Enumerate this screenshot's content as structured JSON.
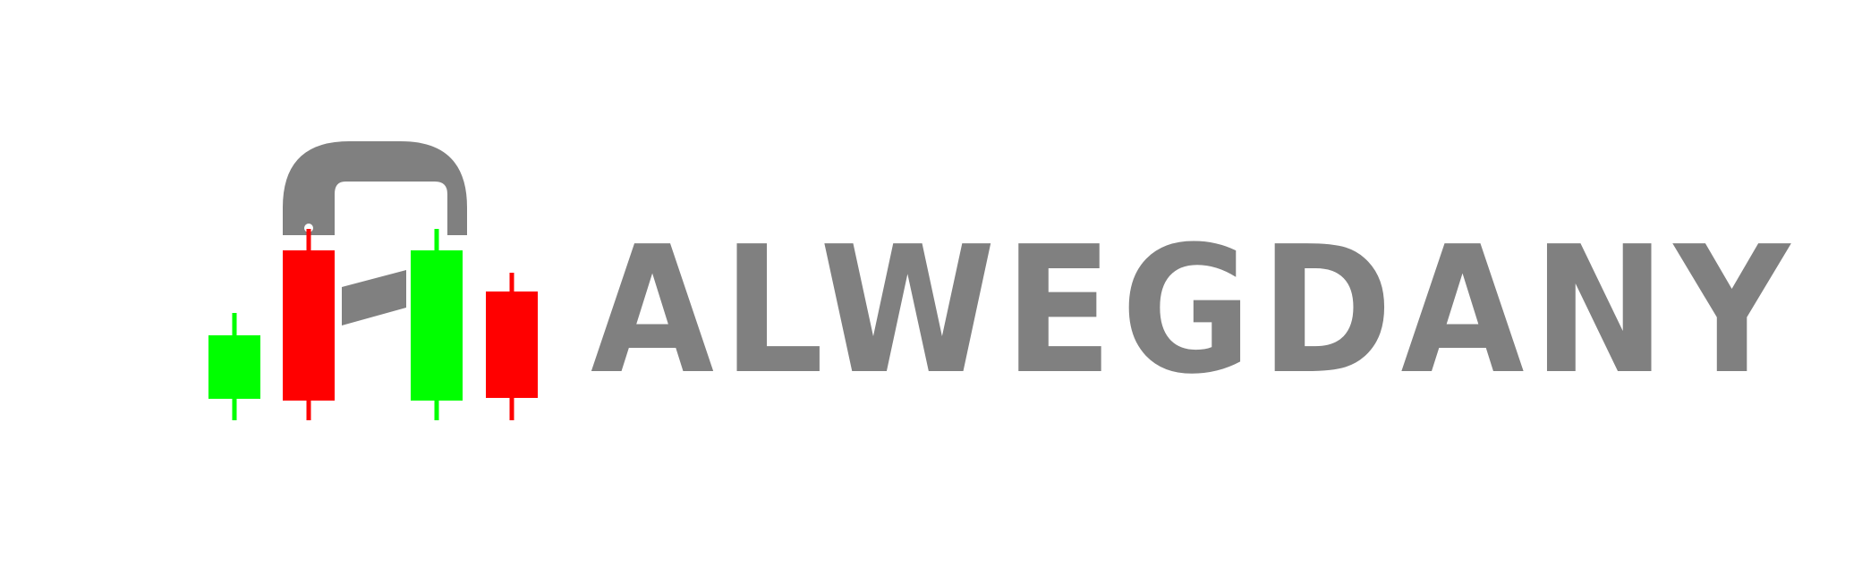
{
  "brand": {
    "name": "ALWEGDANY",
    "colors": {
      "text": "#808080",
      "bull": "#00ff00",
      "bear": "#ff0000",
      "magnet": "#808080",
      "background": "#ffffff"
    }
  },
  "logo_icon": "candlestick-magnet-logo"
}
